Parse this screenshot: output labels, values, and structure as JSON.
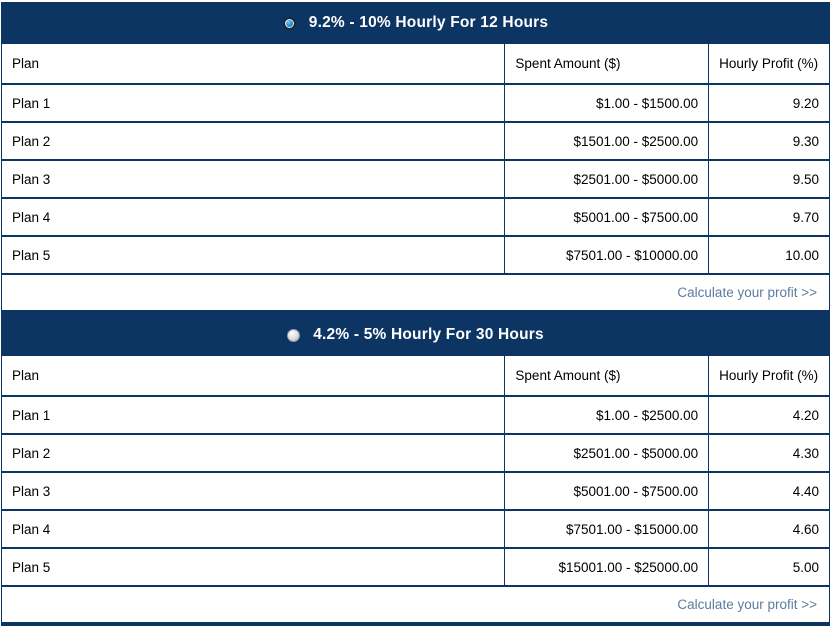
{
  "colors": {
    "navy": "#0d3563",
    "link": "#5b7b9e",
    "radio_dot": "#1f86c9"
  },
  "columns": [
    "Plan",
    "Spent Amount ($)",
    "Hourly Profit (%)"
  ],
  "footer_link": "Calculate your profit >>",
  "plans": [
    {
      "title": "9.2% - 10% Hourly For 12 Hours",
      "selected": true,
      "rows": [
        {
          "plan": "Plan 1",
          "spent": "$1.00 - $1500.00",
          "profit": "9.20"
        },
        {
          "plan": "Plan 2",
          "spent": "$1501.00 - $2500.00",
          "profit": "9.30"
        },
        {
          "plan": "Plan 3",
          "spent": "$2501.00 - $5000.00",
          "profit": "9.50"
        },
        {
          "plan": "Plan 4",
          "spent": "$5001.00 - $7500.00",
          "profit": "9.70"
        },
        {
          "plan": "Plan 5",
          "spent": "$7501.00 - $10000.00",
          "profit": "10.00"
        }
      ]
    },
    {
      "title": "4.2% - 5% Hourly For 30 Hours",
      "selected": false,
      "rows": [
        {
          "plan": "Plan 1",
          "spent": "$1.00 - $2500.00",
          "profit": "4.20"
        },
        {
          "plan": "Plan 2",
          "spent": "$2501.00 - $5000.00",
          "profit": "4.30"
        },
        {
          "plan": "Plan 3",
          "spent": "$5001.00 - $7500.00",
          "profit": "4.40"
        },
        {
          "plan": "Plan 4",
          "spent": "$7501.00 - $15000.00",
          "profit": "4.60"
        },
        {
          "plan": "Plan 5",
          "spent": "$15001.00 - $25000.00",
          "profit": "5.00"
        }
      ]
    }
  ]
}
